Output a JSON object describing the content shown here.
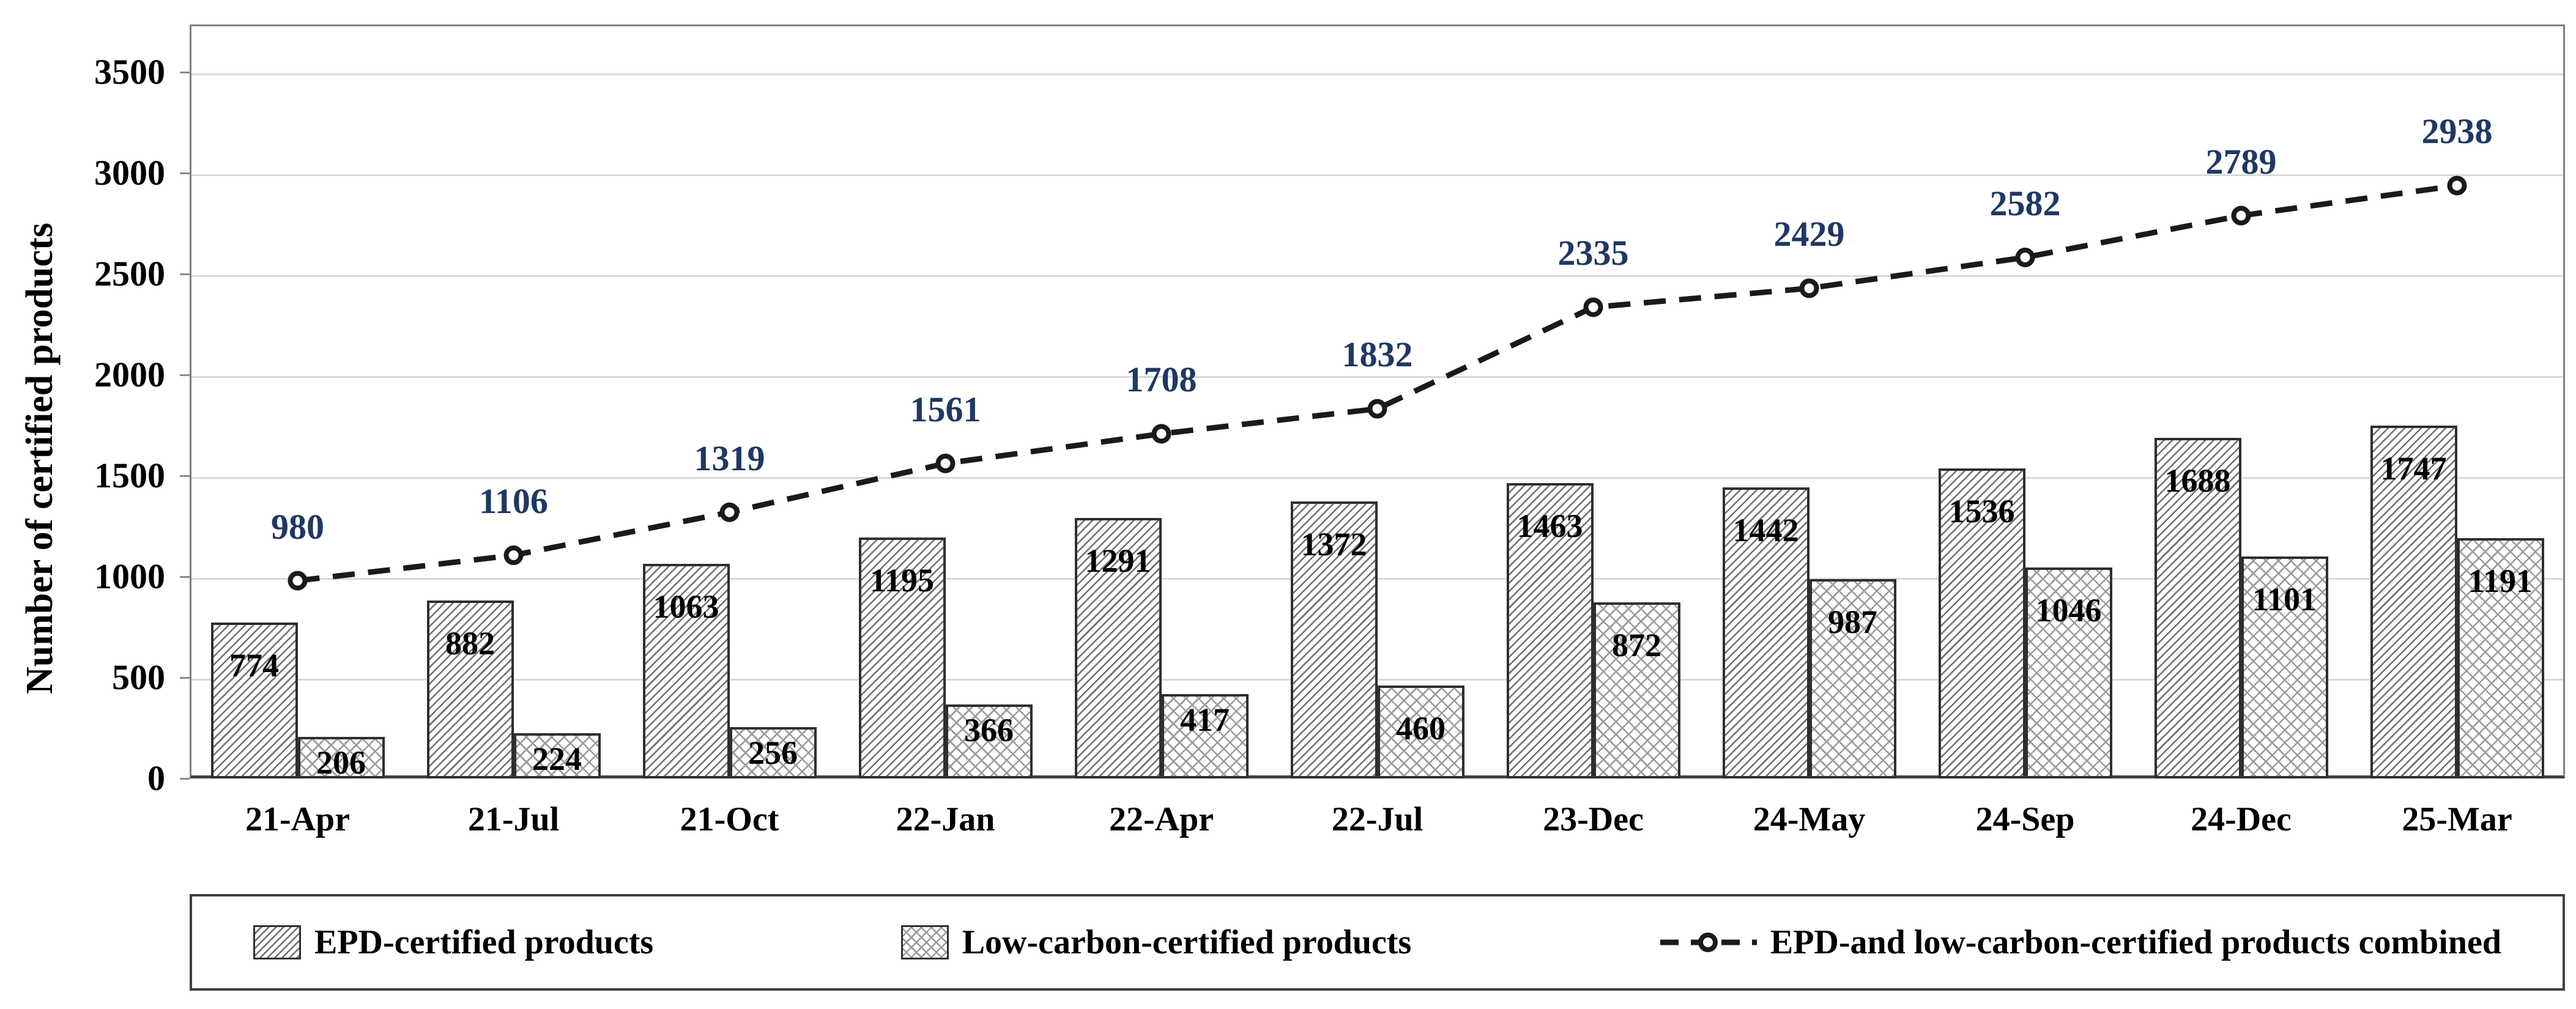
{
  "chart_data": {
    "type": "bar",
    "subtype": "grouped-bars-with-dashed-line-overlay",
    "title": "",
    "ylabel": "Number of certified products",
    "xlabel": "",
    "ylim": [
      0,
      3500
    ],
    "ytick_step": 500,
    "yticks": [
      0,
      500,
      1000,
      1500,
      2000,
      2500,
      3000,
      3500
    ],
    "grid": true,
    "legend_position": "bottom",
    "categories": [
      "21-Apr",
      "21-Jul",
      "21-Oct",
      "22-Jan",
      "22-Apr",
      "22-Jul",
      "23-Dec",
      "24-May",
      "24-Sep",
      "24-Dec",
      "25-Mar"
    ],
    "series": [
      {
        "name": "EPD-certified products",
        "type": "bar",
        "pattern": "diagonal-hatch",
        "values": [
          774,
          882,
          1063,
          1195,
          1291,
          1372,
          1463,
          1442,
          1536,
          1688,
          1747
        ]
      },
      {
        "name": "Low-carbon-certified products",
        "type": "bar",
        "pattern": "cross-hatch",
        "values": [
          206,
          224,
          256,
          366,
          417,
          460,
          872,
          987,
          1046,
          1101,
          1191
        ]
      },
      {
        "name": "EPD-and low-carbon-certified products combined",
        "type": "line",
        "line_style": "dashed",
        "marker": "open-circle",
        "values": [
          980,
          1106,
          1319,
          1561,
          1708,
          1832,
          2335,
          2429,
          2582,
          2789,
          2938
        ]
      }
    ]
  },
  "colors": {
    "combined_label": "#1f3864",
    "bar_label": "#000000",
    "axis_text": "#000000",
    "line": "#1a1a1a",
    "marker_fill": "#ffffff",
    "gridline": "#d9d9d9",
    "plot_border": "#7f7f7f",
    "bar_border": "#2f2f2f"
  }
}
